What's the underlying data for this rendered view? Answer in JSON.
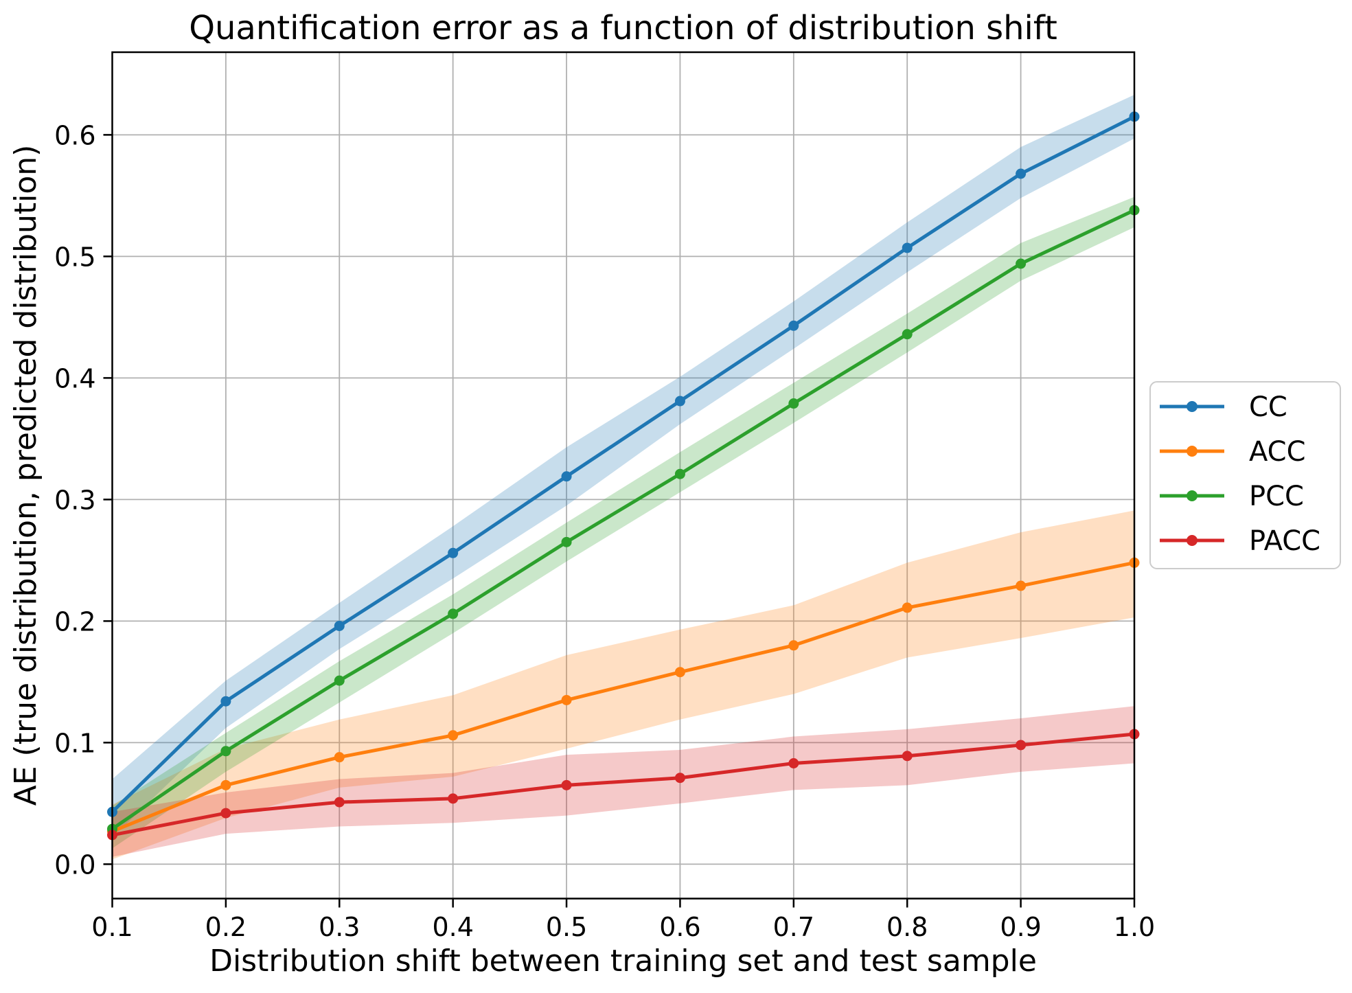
{
  "chart_data": {
    "type": "line",
    "title": "Quantification error as a function of distribution shift",
    "xlabel": "Distribution shift between training set and test sample",
    "ylabel": "AE (true distribution, predicted distribution)",
    "grid": true,
    "legend_position": "outside right, vertically centered",
    "xlim": [
      0.1,
      1.0
    ],
    "ylim": [
      -0.0283,
      0.668
    ],
    "x_ticks": [
      0.1,
      0.2,
      0.3,
      0.4,
      0.5,
      0.6,
      0.7,
      0.8,
      0.9,
      1.0
    ],
    "x_tick_labels": [
      "0.1",
      "0.2",
      "0.3",
      "0.4",
      "0.5",
      "0.6",
      "0.7",
      "0.8",
      "0.9",
      "1.0"
    ],
    "y_ticks": [
      0.0,
      0.1,
      0.2,
      0.3,
      0.4,
      0.5,
      0.6
    ],
    "y_tick_labels": [
      "0.0",
      "0.1",
      "0.2",
      "0.3",
      "0.4",
      "0.5",
      "0.6"
    ],
    "x": [
      0.1,
      0.2,
      0.3,
      0.4,
      0.5,
      0.6,
      0.7,
      0.8,
      0.9,
      1.0
    ],
    "band_alpha": 0.25,
    "grid_color": "#b0b0b0",
    "spine_color": "#000000",
    "series": [
      {
        "name": "CC",
        "color": "#1f77b4",
        "values": [
          0.043,
          0.134,
          0.196,
          0.256,
          0.319,
          0.381,
          0.443,
          0.507,
          0.568,
          0.615
        ],
        "band_lower": [
          0.022,
          0.112,
          0.177,
          0.235,
          0.295,
          0.362,
          0.424,
          0.487,
          0.548,
          0.597
        ],
        "band_upper": [
          0.07,
          0.151,
          0.215,
          0.278,
          0.343,
          0.401,
          0.463,
          0.528,
          0.59,
          0.633
        ]
      },
      {
        "name": "ACC",
        "color": "#ff7f0e",
        "values": [
          0.027,
          0.065,
          0.088,
          0.106,
          0.135,
          0.158,
          0.18,
          0.211,
          0.229,
          0.248
        ],
        "band_lower": [
          0.004,
          0.038,
          0.063,
          0.072,
          0.095,
          0.119,
          0.14,
          0.17,
          0.186,
          0.203
        ],
        "band_upper": [
          0.049,
          0.095,
          0.119,
          0.139,
          0.172,
          0.193,
          0.213,
          0.248,
          0.273,
          0.291
        ]
      },
      {
        "name": "PCC",
        "color": "#2ca02c",
        "values": [
          0.029,
          0.093,
          0.151,
          0.206,
          0.265,
          0.321,
          0.379,
          0.436,
          0.494,
          0.538
        ],
        "band_lower": [
          0.013,
          0.076,
          0.133,
          0.19,
          0.249,
          0.306,
          0.363,
          0.421,
          0.48,
          0.524
        ],
        "band_upper": [
          0.048,
          0.108,
          0.167,
          0.222,
          0.281,
          0.339,
          0.396,
          0.453,
          0.511,
          0.549
        ]
      },
      {
        "name": "PACC",
        "color": "#d62728",
        "values": [
          0.024,
          0.042,
          0.051,
          0.054,
          0.065,
          0.071,
          0.083,
          0.089,
          0.098,
          0.107
        ],
        "band_lower": [
          0.006,
          0.025,
          0.031,
          0.034,
          0.04,
          0.05,
          0.061,
          0.065,
          0.076,
          0.083
        ],
        "band_upper": [
          0.043,
          0.059,
          0.07,
          0.075,
          0.09,
          0.094,
          0.105,
          0.111,
          0.12,
          0.13
        ]
      }
    ],
    "legend_entries": [
      "CC",
      "ACC",
      "PCC",
      "PACC"
    ]
  }
}
